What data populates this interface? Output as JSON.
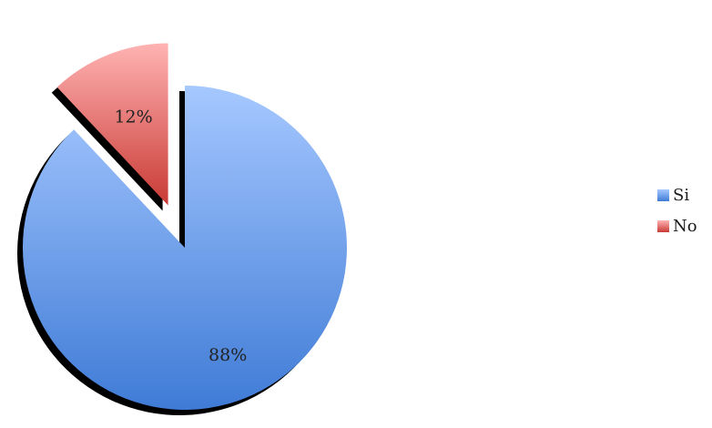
{
  "chart_data": {
    "type": "pie",
    "categories": [
      "Si",
      "No"
    ],
    "values": [
      88,
      12
    ],
    "data_labels": [
      "88%",
      "12%"
    ],
    "exploded": [
      "No"
    ],
    "legend_position": "right",
    "title": "",
    "colors": {
      "Si": {
        "light": "#a6c8ff",
        "dark": "#3f7bd6"
      },
      "No": {
        "light": "#ffb3b3",
        "dark": "#c93a34"
      }
    }
  }
}
